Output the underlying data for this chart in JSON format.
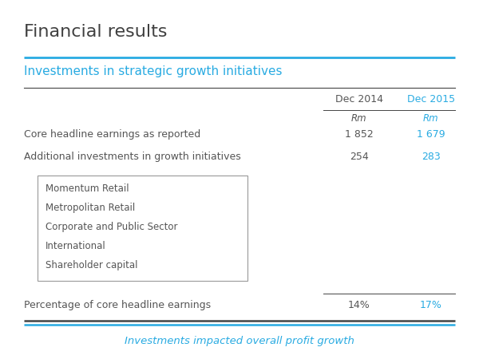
{
  "title": "Financial results",
  "subtitle": "Investments in strategic growth initiatives",
  "footer": "Investments impacted overall profit growth",
  "col1_header": "Dec 2014",
  "col2_header": "Dec 2015",
  "unit_label": "Rm",
  "rows": [
    {
      "label": "Core headline earnings as reported",
      "val1": "1 852",
      "val2": "1 679"
    },
    {
      "label": "Additional investments in growth initiatives",
      "val1": "254",
      "val2": "283"
    }
  ],
  "box_items": [
    "Momentum Retail",
    "Metropolitan Retail",
    "Corporate and Public Sector",
    "International",
    "Shareholder capital"
  ],
  "pct_row": {
    "label": "Percentage of core headline earnings",
    "val1": "14%",
    "val2": "17%"
  },
  "title_color": "#404040",
  "subtitle_color": "#29ABE2",
  "col2_color": "#29ABE2",
  "col1_color": "#555555",
  "footer_color": "#29ABE2",
  "label_color": "#555555",
  "box_border_color": "#999999",
  "cyan_color": "#29ABE2",
  "dark_line_color": "#444444",
  "background_color": "#FFFFFF",
  "figw": 6.0,
  "figh": 4.5,
  "dpi": 100
}
